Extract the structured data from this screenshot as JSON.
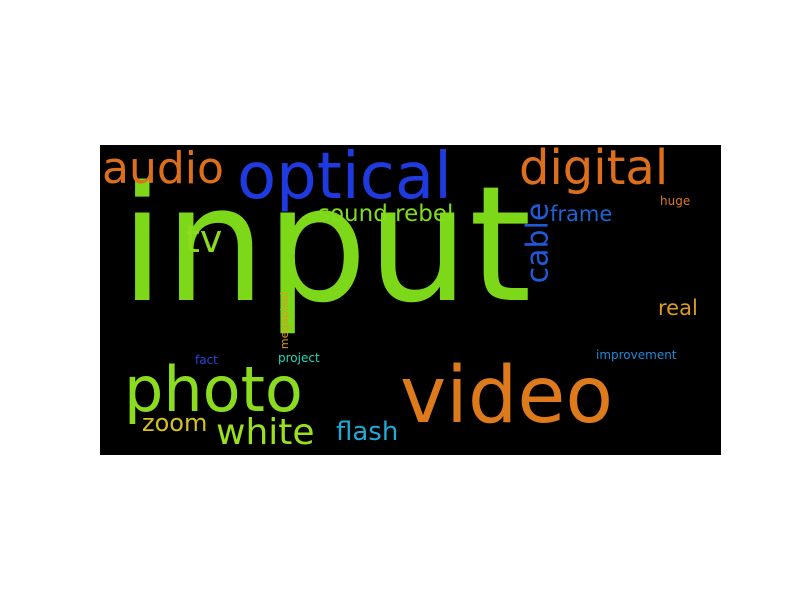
{
  "word_cloud": {
    "background": "#000000",
    "words": [
      {
        "key": "input",
        "text": "input",
        "color": "#7dd81a"
      },
      {
        "key": "optical",
        "text": "optical",
        "color": "#1f3be0"
      },
      {
        "key": "digital",
        "text": "digital",
        "color": "#dd6f1c"
      },
      {
        "key": "audio",
        "text": "audio",
        "color": "#dd6f1c"
      },
      {
        "key": "tv",
        "text": "tv",
        "color": "#8bdb1f"
      },
      {
        "key": "sound_rebel",
        "text": "sound rebel",
        "color": "#80dc1d"
      },
      {
        "key": "cable",
        "text": "cable",
        "color": "#1f5ad8"
      },
      {
        "key": "frame",
        "text": "frame",
        "color": "#1f63d6"
      },
      {
        "key": "huge",
        "text": "huge",
        "color": "#dd7a1c"
      },
      {
        "key": "real",
        "text": "real",
        "color": "#dd9a24"
      },
      {
        "key": "megapixel",
        "text": "megapixel",
        "color": "#dd9a24"
      },
      {
        "key": "fact",
        "text": "fact",
        "color": "#1f4bd6"
      },
      {
        "key": "project",
        "text": "project",
        "color": "#1fd8b8"
      },
      {
        "key": "improvement",
        "text": "improvement",
        "color": "#1f88d8"
      },
      {
        "key": "photo",
        "text": "photo",
        "color": "#8bdb1f"
      },
      {
        "key": "video",
        "text": "video",
        "color": "#dd7a1c"
      },
      {
        "key": "zoom",
        "text": "zoom",
        "color": "#d4c01e"
      },
      {
        "key": "white",
        "text": "white",
        "color": "#9ae01f"
      },
      {
        "key": "flash",
        "text": "flash",
        "color": "#1fa8d8"
      }
    ]
  }
}
